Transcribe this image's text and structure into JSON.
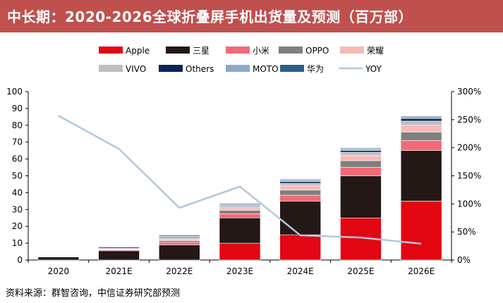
{
  "header": {
    "title": "中长期：2020-2026全球折叠屏手机出货量及预测（百万部）"
  },
  "footer": {
    "source": "资料来源：群智咨询，中信证券研究部预测"
  },
  "chart_data": {
    "type": "bar",
    "stacked": true,
    "title": "中长期：2020-2026全球折叠屏手机出货量及预测（百万部）",
    "xlabel": "",
    "ylabel": "",
    "categories": [
      "2020",
      "2021E",
      "2022E",
      "2023E",
      "2024E",
      "2025E",
      "2026E"
    ],
    "ylim": [
      0,
      100
    ],
    "yticks": [
      0,
      10,
      20,
      30,
      40,
      50,
      60,
      70,
      80,
      90,
      100
    ],
    "y2lim": [
      0,
      300
    ],
    "y2ticks": [
      "0%",
      "50%",
      "100%",
      "150%",
      "200%",
      "250%",
      "300%"
    ],
    "legend_position": "top",
    "grid": false,
    "series": [
      {
        "name": "Apple",
        "color": "#e30613",
        "values": [
          0,
          0,
          0,
          10,
          15,
          25,
          35
        ]
      },
      {
        "name": "三星",
        "color": "#231815",
        "values": [
          1.8,
          5.5,
          9,
          15,
          20,
          25,
          30
        ]
      },
      {
        "name": "小米",
        "color": "#f26a78",
        "values": [
          0.2,
          0.5,
          1.5,
          2.5,
          3.5,
          5,
          6
        ]
      },
      {
        "name": "OPPO",
        "color": "#7f7f7f",
        "values": [
          0,
          0.2,
          1,
          2,
          3,
          4,
          5
        ]
      },
      {
        "name": "荣耀",
        "color": "#f9b8b8",
        "values": [
          0,
          0.2,
          1,
          1.5,
          2.5,
          3,
          4
        ]
      },
      {
        "name": "VIVO",
        "color": "#bfbfbf",
        "values": [
          0,
          0,
          0.5,
          1,
          1.5,
          2,
          2.5
        ]
      },
      {
        "name": "Others",
        "color": "#0a2456",
        "values": [
          0,
          0.2,
          0.5,
          0.5,
          1,
          1,
          1.5
        ]
      },
      {
        "name": "MOTO",
        "color": "#8ea9c8",
        "values": [
          0.3,
          0.3,
          0.5,
          0.5,
          1,
          1,
          1
        ]
      },
      {
        "name": "华为",
        "color": "#2e5e8c",
        "values": [
          0.3,
          0.8,
          0.7,
          0.5,
          0.5,
          0.5,
          0.5
        ]
      }
    ],
    "line_series": {
      "name": "YOY",
      "color": "#b4c7d9",
      "axis": "right",
      "values": [
        257,
        198,
        93,
        131,
        44,
        40,
        29
      ]
    }
  }
}
